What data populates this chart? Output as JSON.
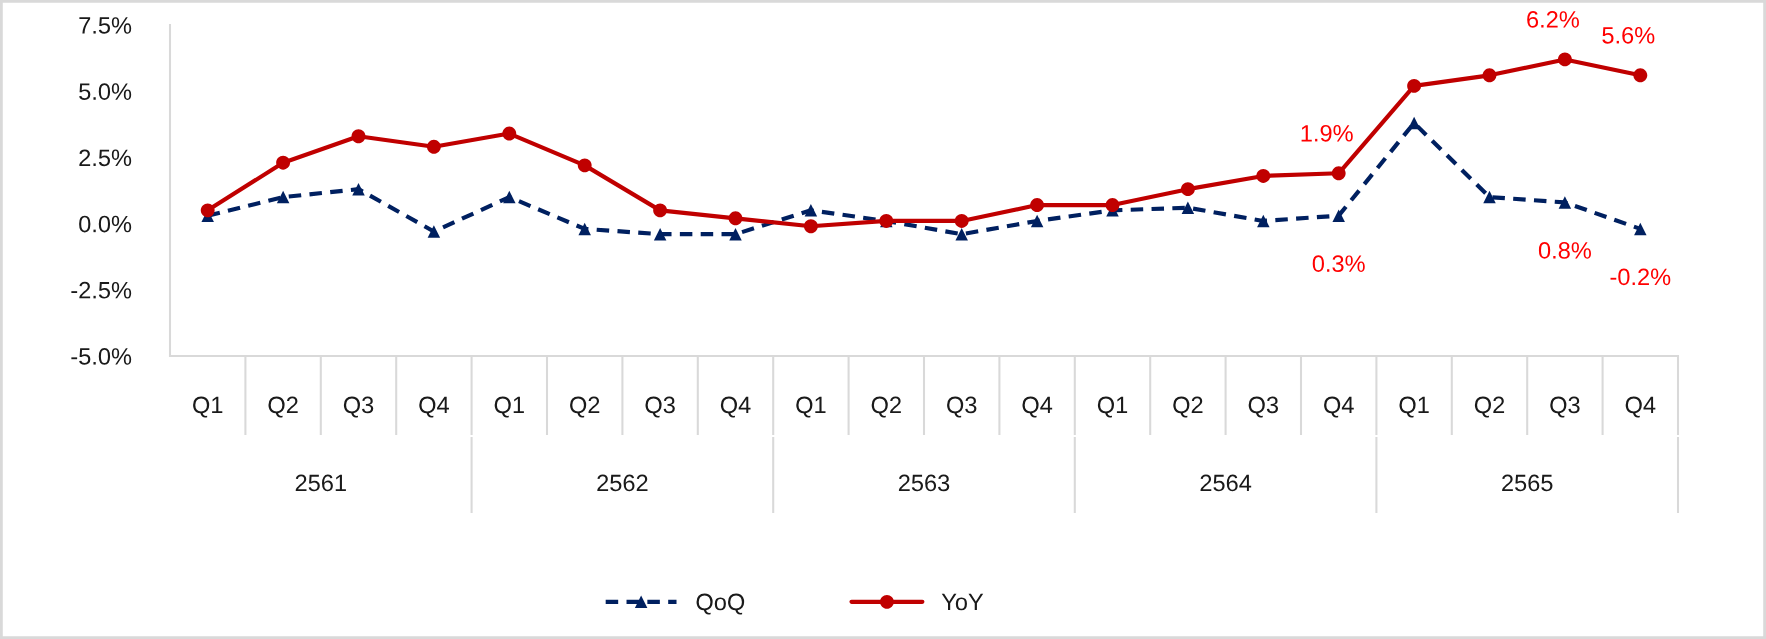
{
  "chart_data": {
    "type": "line",
    "categories": [
      "Q1",
      "Q2",
      "Q3",
      "Q4",
      "Q1",
      "Q2",
      "Q3",
      "Q4",
      "Q1",
      "Q2",
      "Q3",
      "Q4",
      "Q1",
      "Q2",
      "Q3",
      "Q4",
      "Q1",
      "Q2",
      "Q3",
      "Q4"
    ],
    "series": [
      {
        "name": "QoQ",
        "color": "#002060",
        "marker": "triangle",
        "line_style": "dashed",
        "values": [
          0.3,
          1.0,
          1.3,
          -0.3,
          1.0,
          -0.2,
          -0.4,
          -0.4,
          0.5,
          0.1,
          -0.4,
          0.1,
          0.5,
          0.6,
          0.1,
          0.3,
          3.8,
          1.0,
          0.8,
          -0.2
        ],
        "value_labels": [
          null,
          null,
          null,
          null,
          null,
          null,
          null,
          null,
          null,
          null,
          null,
          null,
          null,
          null,
          null,
          "0.3%",
          null,
          null,
          "0.8%",
          "-0.2%"
        ]
      },
      {
        "name": "YoY",
        "color": "#c00000",
        "marker": "circle",
        "line_style": "solid",
        "values": [
          0.5,
          2.3,
          3.3,
          2.9,
          3.4,
          2.2,
          0.5,
          0.2,
          -0.1,
          0.1,
          0.1,
          0.7,
          0.7,
          1.3,
          1.8,
          1.9,
          5.2,
          5.6,
          6.2,
          5.6
        ],
        "value_labels": [
          null,
          null,
          null,
          null,
          null,
          null,
          null,
          null,
          null,
          null,
          null,
          null,
          null,
          null,
          null,
          "1.9%",
          null,
          null,
          "6.2%",
          "5.6%"
        ]
      }
    ],
    "ylim": [
      -5.0,
      7.5
    ],
    "yticks": [
      {
        "value": -5.0,
        "label": "-5.0%"
      },
      {
        "value": -2.5,
        "label": "-2.5%"
      },
      {
        "value": 0.0,
        "label": "0.0%"
      },
      {
        "value": 2.5,
        "label": "2.5%"
      },
      {
        "value": 5.0,
        "label": "5.0%"
      },
      {
        "value": 7.5,
        "label": "7.5%"
      }
    ],
    "annotations": [
      "2561",
      "2562",
      "2563",
      "2564",
      "2565"
    ],
    "grid": false,
    "legend": "bottom"
  }
}
